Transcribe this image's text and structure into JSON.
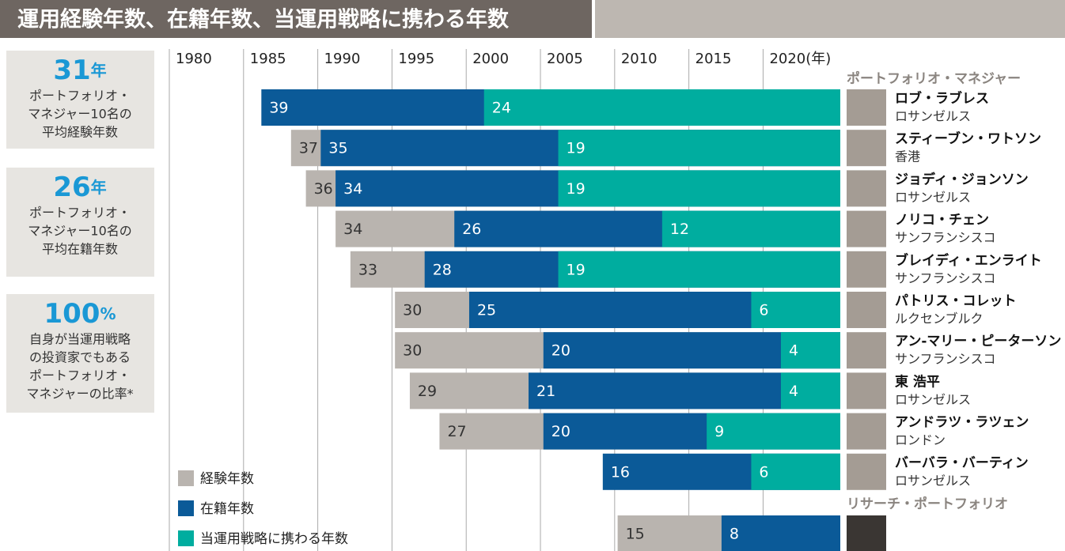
{
  "header": {
    "title": "運用経験年数、在籍年数、当運用戦略に携わる年数"
  },
  "stats": [
    {
      "value": "31",
      "unit": "年",
      "lines": [
        "ポートフォリオ・",
        "マネジャー10名の",
        "平均経験年数"
      ]
    },
    {
      "value": "26",
      "unit": "年",
      "lines": [
        "ポートフォリオ・",
        "マネジャー10名の",
        "平均在籍年数"
      ]
    },
    {
      "value": "100",
      "unit": "%",
      "lines": [
        "自身が当運用戦略",
        "の投資家でもある",
        "ポートフォリオ・",
        "マネジャーの比率*"
      ]
    }
  ],
  "chart_data": {
    "type": "bar",
    "sections": [
      "ポートフォリオ・マネジャー",
      "リサーチ・ポートフォリオ"
    ],
    "categories": [
      "ロブ・ラブレス",
      "スティーブン・ワトソン",
      "ジョディ・ジョンソン",
      "ノリコ・チェン",
      "ブレイディ・エンライト",
      "パトリス・コレット",
      "アン-マリー・ピーターソン",
      "東 浩平",
      "アンドラツ・ラツェン",
      "バーバラ・バーティン",
      null
    ],
    "locations": [
      "ロサンゼルス",
      "香港",
      "ロサンゼルス",
      "サンフランシスコ",
      "サンフランシスコ",
      "ルクセンブルク",
      "サンフランシスコ",
      "ロサンゼルス",
      "ロンドン",
      "ロサンゼルス",
      null
    ],
    "series": [
      {
        "name": "経験年数",
        "color": "#b9b4af",
        "values": [
          null,
          37,
          36,
          34,
          33,
          30,
          30,
          29,
          27,
          null,
          15
        ]
      },
      {
        "name": "在籍年数",
        "color": "#0b5a98",
        "values": [
          39,
          35,
          34,
          26,
          28,
          25,
          20,
          21,
          20,
          16,
          8
        ]
      },
      {
        "name": "当運用戦略に携わる年数",
        "color": "#00ad9f",
        "values": [
          24,
          19,
          19,
          12,
          19,
          6,
          4,
          4,
          9,
          6,
          null
        ]
      }
    ],
    "xlim": [
      1980,
      2025.2
    ],
    "xticks": [
      1980,
      1985,
      1990,
      1995,
      2000,
      2005,
      2010,
      2015,
      {
        "value": 2020,
        "label": "2020(年)"
      }
    ],
    "grid": true
  }
}
